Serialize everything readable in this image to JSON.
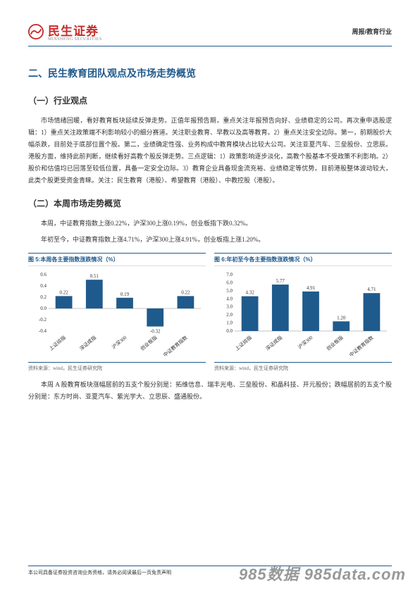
{
  "header": {
    "logo_cn": "民生证券",
    "logo_en": "MINSHENG SECURITIES",
    "right": "周报/教育行业"
  },
  "section_title": "二、民生教育团队观点及市场走势概览",
  "sub1_title": "（一）行业观点",
  "sub1_body": "市场情绪回暖，看好教育板块延续反弹走势。正值年报预告期，重点关注年报预告向好、业绩稳定的公司。再次重申选股逻辑：1）重点关注政策端不利影响较小的细分赛道。关注职业教育、早教以及高等教育。2）重点关注安全边际。第一，前期股价大幅杀跌，目前处于底部位置个股。第二，业绩确定性强、业务构成中教育模块占比较大公司。关注亚夏汽车、三垒股份、立思辰。港股方面，维持此前判断，继续看好高教个股反弹走势。三点逻辑：1）政策影响逐步淡化，高教个股基本不受政策不利影响。2）股价和估值均已回落至较低位置，具备一定安全边际。3）教育企业具备现金流充裕、业绩稳定等优势。目前港股整体波动较大，此类个股更受资金青睐。关注：民生教育（港股）、希望教育（港股）、中教控股（港股）。",
  "sub2_title": "（二）本周市场走势概览",
  "sub2_body1": "本周，中证教育指数上涨0.22%，沪深300上涨0.19%，创业板指下跌0.32%。",
  "sub2_body2": "年初至今，中证教育指数上涨4.71%，沪深300上涨4.91%，创业板指上涨1.20%。",
  "chart5": {
    "title": "图 5:本周各主要指数涨跌情况（%）",
    "type": "bar",
    "categories": [
      "上证综指",
      "深证成指",
      "沪深300",
      "创业板指",
      "中证教育指数"
    ],
    "values": [
      0.22,
      0.51,
      0.19,
      -0.32,
      0.22
    ],
    "bar_color": "#1f5a8c",
    "ylim": [
      -0.4,
      0.6
    ],
    "ytick_step": 0.2,
    "background_color": "#ffffff",
    "source": "资料来源：wind，民生证券研究院"
  },
  "chart6": {
    "title": "图 6:年初至今各主要指数涨跌情况（%）",
    "type": "bar",
    "categories": [
      "上证综指",
      "深证成指",
      "沪深300",
      "创业板指",
      "中证教育指数"
    ],
    "values": [
      4.32,
      5.77,
      4.91,
      1.2,
      4.71
    ],
    "bar_color": "#1f5a8c",
    "ylim": [
      0.0,
      7.0
    ],
    "ytick_step": 1.0,
    "background_color": "#ffffff",
    "source": "资料来源：wind，民生证券研究院"
  },
  "post_chart_body": "本周 A 股教育板块涨幅居前的五支个股分别是：拓维信息、瑞丰光电、三垒股份、和晶科技、开元股份；跌幅居前的五支个股分别是：东方时尚、亚夏汽车、紫光学大、立思辰、盛通股份。",
  "footer_text": "本公司具备证券投资咨询业务资格，请务必阅读最后一页免责声明",
  "watermark": "985数据 985data.com"
}
